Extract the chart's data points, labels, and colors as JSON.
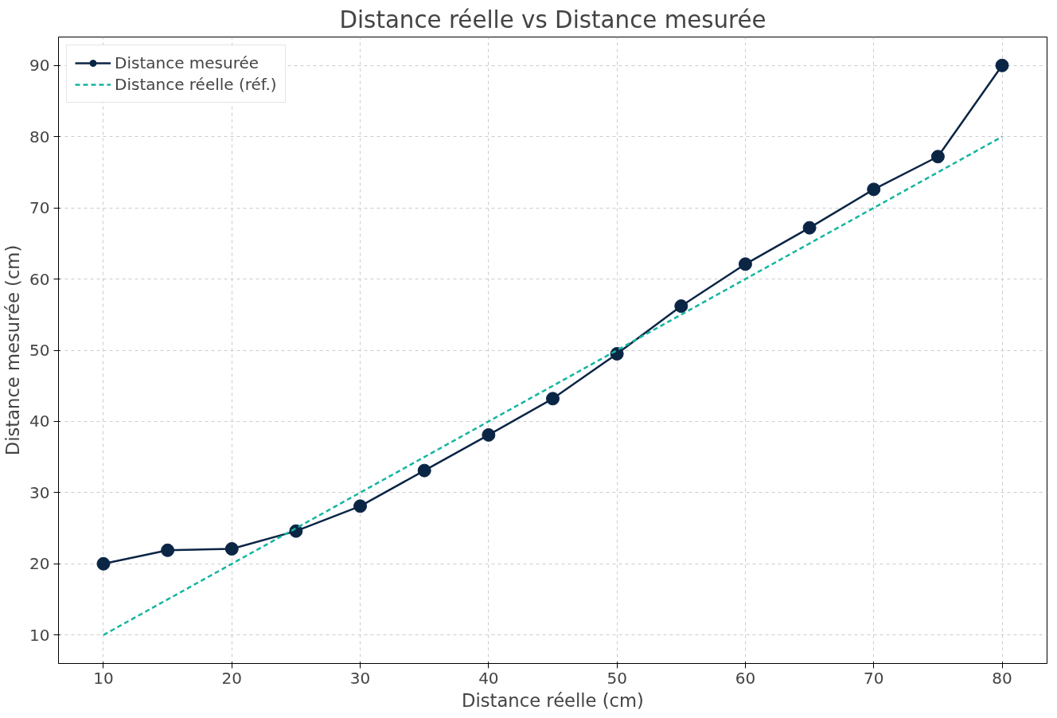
{
  "chart_data": {
    "type": "line",
    "title": "Distance réelle vs Distance mesurée",
    "xlabel": "Distance réelle (cm)",
    "ylabel": "Distance mesurée (cm)",
    "x": [
      10,
      15,
      20,
      25,
      30,
      35,
      40,
      45,
      50,
      55,
      60,
      65,
      70,
      75,
      80
    ],
    "series": [
      {
        "name": "Distance mesurée",
        "color": "#0b2545",
        "marker": "circle",
        "line_style": "solid",
        "values": [
          20.0,
          21.9,
          22.1,
          24.6,
          28.1,
          33.1,
          38.1,
          43.2,
          49.5,
          56.2,
          62.1,
          67.2,
          72.6,
          77.2,
          90.0
        ]
      },
      {
        "name": "Distance réelle (réf.)",
        "color": "#13b5a0",
        "marker": "none",
        "line_style": "dashed",
        "x": [
          10,
          80
        ],
        "values": [
          10,
          80
        ]
      }
    ],
    "xlim": [
      6.5,
      83.5
    ],
    "ylim": [
      6,
      94
    ],
    "xticks": [
      10,
      20,
      30,
      40,
      50,
      60,
      70,
      80
    ],
    "yticks": [
      10,
      20,
      30,
      40,
      50,
      60,
      70,
      80,
      90
    ],
    "grid": true,
    "legend": "top left"
  }
}
